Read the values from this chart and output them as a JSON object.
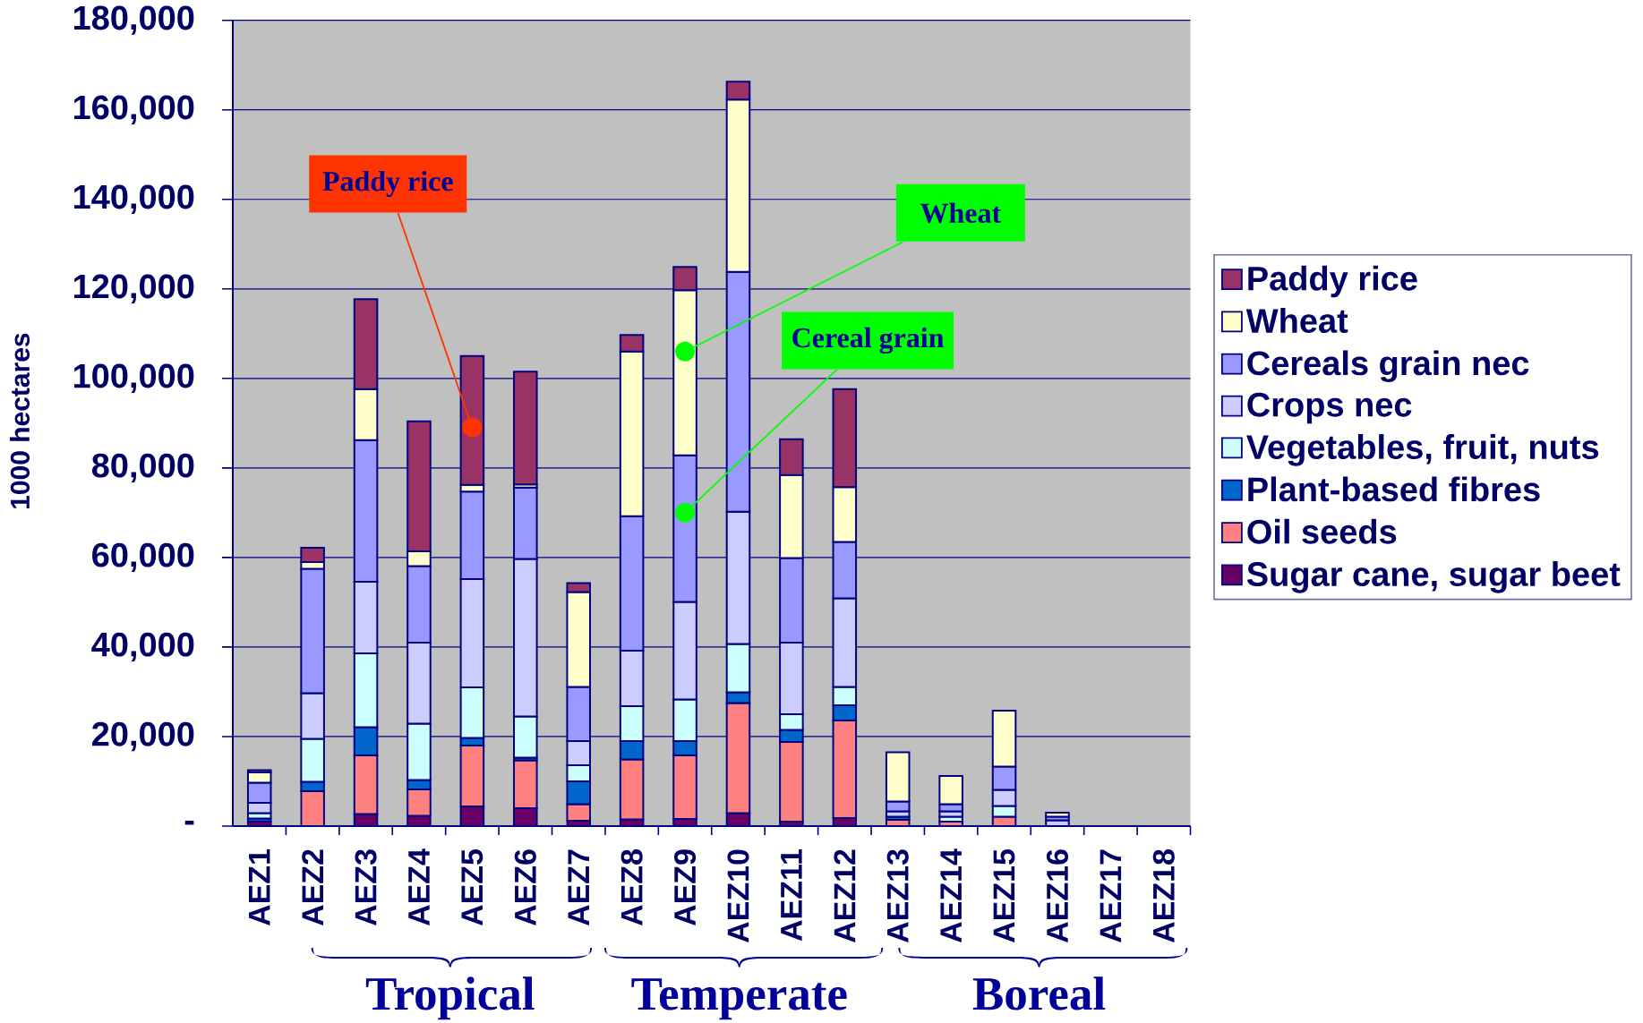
{
  "chart_data": {
    "type": "bar",
    "stacked": true,
    "ylabel": "1000 hectares",
    "categories": [
      "AEZ1",
      "AEZ2",
      "AEZ3",
      "AEZ4",
      "AEZ5",
      "AEZ6",
      "AEZ7",
      "AEZ8",
      "AEZ9",
      "AEZ10",
      "AEZ11",
      "AEZ12",
      "AEZ13",
      "AEZ14",
      "AEZ15",
      "AEZ16",
      "AEZ17",
      "AEZ18"
    ],
    "series": [
      {
        "name": "Sugar cane, sugar beet",
        "color": "#660066",
        "values": [
          1000,
          null,
          2700,
          2300,
          4400,
          4000,
          1200,
          1500,
          1600,
          2900,
          1000,
          1800,
          null,
          null,
          null,
          null,
          null,
          null
        ]
      },
      {
        "name": "Oil seeds",
        "color": "#ff8080",
        "values": [
          null,
          7800,
          13100,
          5900,
          13600,
          10700,
          3700,
          13400,
          14200,
          24600,
          17800,
          21800,
          1400,
          1000,
          2100,
          null,
          null,
          null
        ]
      },
      {
        "name": "Plant-based fibres",
        "color": "#0066cc",
        "values": [
          700,
          2100,
          6300,
          2100,
          1700,
          600,
          5100,
          4100,
          3200,
          2400,
          2700,
          3400,
          700,
          null,
          null,
          null,
          null,
          null
        ]
      },
      {
        "name": "Vegetables, fruit, nuts",
        "color": "#ccffff",
        "values": [
          1200,
          9600,
          16500,
          12600,
          11300,
          9200,
          3600,
          7800,
          9300,
          10800,
          3500,
          4100,
          null,
          1100,
          2400,
          null,
          null,
          null
        ]
      },
      {
        "name": "Crops nec",
        "color": "#ccccff",
        "values": [
          2300,
          10200,
          16000,
          18100,
          24200,
          35200,
          5400,
          12400,
          21800,
          29500,
          16000,
          19800,
          1200,
          1200,
          3600,
          1300,
          null,
          null
        ]
      },
      {
        "name": "Cereals grain nec",
        "color": "#9999ff",
        "values": [
          4500,
          27800,
          31600,
          17100,
          19500,
          15900,
          12100,
          30000,
          32700,
          53600,
          18900,
          12600,
          2200,
          1600,
          5200,
          800,
          null,
          null
        ]
      },
      {
        "name": "Wheat",
        "color": "#ffffcc",
        "values": [
          2300,
          1500,
          11400,
          3300,
          1500,
          700,
          21200,
          36800,
          36900,
          38500,
          18500,
          12200,
          11000,
          6300,
          12500,
          900,
          null,
          null
        ]
      },
      {
        "name": "Paddy rice",
        "color": "#993366",
        "values": [
          500,
          3200,
          20100,
          29000,
          28800,
          25200,
          2000,
          3700,
          5200,
          4000,
          8000,
          21900,
          null,
          null,
          null,
          null,
          null,
          null
        ]
      }
    ],
    "ylim": [
      0,
      180000
    ],
    "yticks": [
      {
        "value": 0,
        "label": "-"
      },
      {
        "value": 20000,
        "label": "20,000"
      },
      {
        "value": 40000,
        "label": "40,000"
      },
      {
        "value": 60000,
        "label": "60,000"
      },
      {
        "value": 80000,
        "label": "80,000"
      },
      {
        "value": 100000,
        "label": "100,000"
      },
      {
        "value": 120000,
        "label": "120,000"
      },
      {
        "value": 140000,
        "label": "140,000"
      },
      {
        "value": 160000,
        "label": "160,000"
      },
      {
        "value": 180000,
        "label": "180,000"
      }
    ],
    "grid": "y",
    "legend": "right",
    "annotations": [
      {
        "text": "Paddy rice",
        "x": "AEZ5",
        "y": 89000
      },
      {
        "text": "Wheat",
        "x": "AEZ9",
        "y": 106000
      },
      {
        "text": "Cereal grain",
        "x": "AEZ9",
        "y": 70000
      },
      "Tropical",
      "Temperate",
      "Boreal"
    ]
  }
}
